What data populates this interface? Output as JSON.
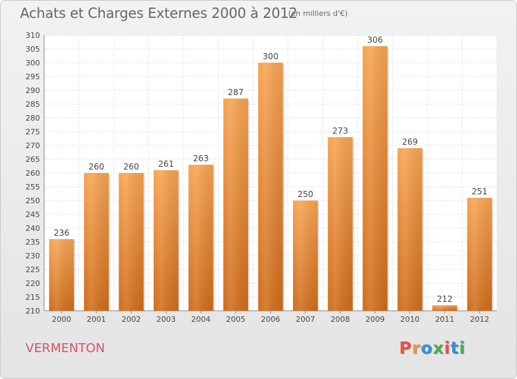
{
  "chart_data": {
    "type": "bar",
    "title": "Achats et Charges Externes 2000 à 2012",
    "unit_note": "(en milliers d'€)",
    "categories": [
      "2000",
      "2001",
      "2002",
      "2003",
      "2004",
      "2005",
      "2006",
      "2007",
      "2008",
      "2009",
      "2010",
      "2011",
      "2012"
    ],
    "values": [
      236,
      260,
      260,
      261,
      263,
      287,
      300,
      250,
      273,
      306,
      269,
      212,
      251
    ],
    "ylim": [
      210,
      310
    ],
    "ytick_step": 5,
    "grid": true,
    "bar_color": "#f0923c"
  },
  "footer": {
    "commune": "VERMENTON",
    "logo": "Proxiti",
    "logo_colors": [
      "#e8504a",
      "#f09a2c",
      "#3a8fd8",
      "#4cae4c",
      "#e8504a",
      "#3a8fd8",
      "#4cae4c"
    ]
  }
}
